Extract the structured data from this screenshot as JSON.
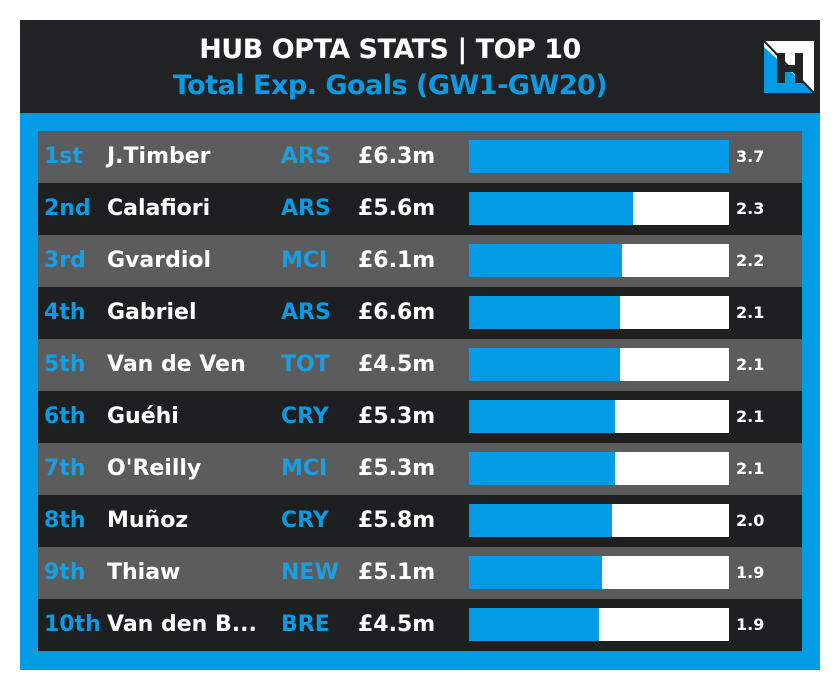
{
  "header": {
    "title": "HUB OPTA STATS | TOP 10",
    "subtitle": "Total Exp. Goals (GW1-GW20)",
    "logo_icon": "hub-h-logo"
  },
  "colors": {
    "accent": "#039be5",
    "header_bg": "#212224",
    "row_light": "#5c5c5c",
    "row_dark": "#1e1f21",
    "bar_bg": "#ffffff"
  },
  "rows": [
    {
      "rank": "1st",
      "name": "J.Timber",
      "team": "ARS",
      "price": "£6.3m",
      "value": "3.7",
      "fill_pct": 100
    },
    {
      "rank": "2nd",
      "name": "Calafiori",
      "team": "ARS",
      "price": "£5.6m",
      "value": "2.3",
      "fill_pct": 63
    },
    {
      "rank": "3rd",
      "name": "Gvardiol",
      "team": "MCI",
      "price": "£6.1m",
      "value": "2.2",
      "fill_pct": 59
    },
    {
      "rank": "4th",
      "name": "Gabriel",
      "team": "ARS",
      "price": "£6.6m",
      "value": "2.1",
      "fill_pct": 58
    },
    {
      "rank": "5th",
      "name": "Van de Ven",
      "team": "TOT",
      "price": "£4.5m",
      "value": "2.1",
      "fill_pct": 58
    },
    {
      "rank": "6th",
      "name": "Guéhi",
      "team": "CRY",
      "price": "£5.3m",
      "value": "2.1",
      "fill_pct": 56
    },
    {
      "rank": "7th",
      "name": "O'Reilly",
      "team": "MCI",
      "price": "£5.3m",
      "value": "2.1",
      "fill_pct": 56
    },
    {
      "rank": "8th",
      "name": "Muñoz",
      "team": "CRY",
      "price": "£5.8m",
      "value": "2.0",
      "fill_pct": 55
    },
    {
      "rank": "9th",
      "name": "Thiaw",
      "team": "NEW",
      "price": "£5.1m",
      "value": "1.9",
      "fill_pct": 51
    },
    {
      "rank": "10th",
      "name": "Van den B...",
      "team": "BRE",
      "price": "£4.5m",
      "value": "1.9",
      "fill_pct": 50
    }
  ],
  "chart_data": {
    "type": "bar",
    "orientation": "horizontal",
    "title": "HUB OPTA STATS | TOP 10",
    "subtitle": "Total Exp. Goals (GW1-GW20)",
    "xlabel": "",
    "ylabel": "",
    "categories": [
      "J.Timber",
      "Calafiori",
      "Gvardiol",
      "Gabriel",
      "Van de Ven",
      "Guéhi",
      "O'Reilly",
      "Muñoz",
      "Thiaw",
      "Van den B..."
    ],
    "series": [
      {
        "name": "Total Exp. Goals",
        "values": [
          3.7,
          2.3,
          2.2,
          2.1,
          2.1,
          2.1,
          2.1,
          2.0,
          1.9,
          1.9
        ]
      }
    ],
    "teams": [
      "ARS",
      "ARS",
      "MCI",
      "ARS",
      "TOT",
      "CRY",
      "MCI",
      "CRY",
      "NEW",
      "BRE"
    ],
    "prices": [
      "£6.3m",
      "£5.6m",
      "£6.1m",
      "£6.6m",
      "£4.5m",
      "£5.3m",
      "£5.3m",
      "£5.8m",
      "£5.1m",
      "£4.5m"
    ],
    "ranks": [
      "1st",
      "2nd",
      "3rd",
      "4th",
      "5th",
      "6th",
      "7th",
      "8th",
      "9th",
      "10th"
    ],
    "xlim": [
      0,
      3.7
    ],
    "grid": false,
    "legend": "none"
  }
}
